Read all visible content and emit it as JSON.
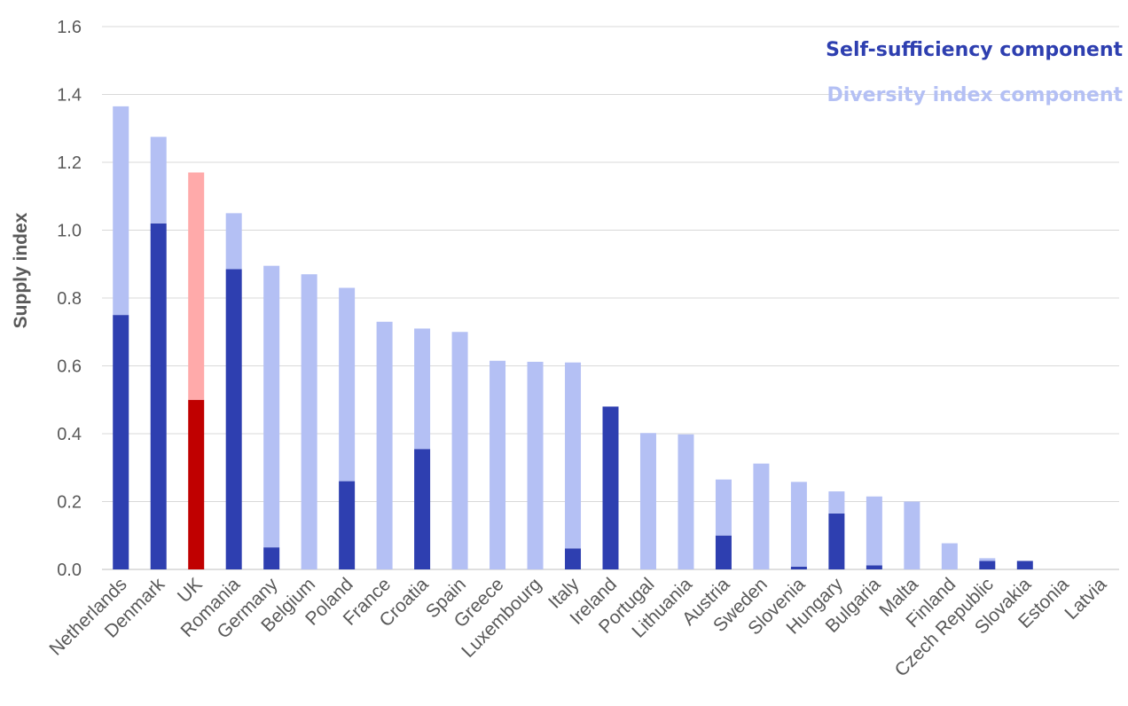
{
  "chart_data": {
    "type": "bar",
    "stacked": true,
    "ylabel": "Supply index",
    "xlabel": "",
    "ylim": [
      0,
      1.6
    ],
    "yticks": [
      "0.0",
      "0.2",
      "0.4",
      "0.6",
      "0.8",
      "1.0",
      "1.2",
      "1.4",
      "1.6"
    ],
    "grid": true,
    "legend_position": "top-right",
    "categories": [
      "Netherlands",
      "Denmark",
      "UK",
      "Romania",
      "Germany",
      "Belgium",
      "Poland",
      "France",
      "Croatia",
      "Spain",
      "Greece",
      "Luxembourg",
      "Italy",
      "Ireland",
      "Portugal",
      "Lithuania",
      "Austria",
      "Sweden",
      "Slovenia",
      "Hungary",
      "Bulgaria",
      "Malta",
      "Finland",
      "Czech Republic",
      "Slovakia",
      "Estonia",
      "Latvia"
    ],
    "highlight_category": "UK",
    "series": [
      {
        "name": "Self-sufficiency component",
        "color": "#2e3fb0",
        "highlight_color": "#c00000",
        "values": [
          0.75,
          1.02,
          0.5,
          0.885,
          0.065,
          0.0,
          0.26,
          0.0,
          0.355,
          0.0,
          0.0,
          0.0,
          0.062,
          0.48,
          0.0,
          0.0,
          0.1,
          0.0,
          0.008,
          0.165,
          0.012,
          0.0,
          0.0,
          0.025,
          0.025,
          0.0,
          0.0
        ]
      },
      {
        "name": "Diversity index component",
        "color": "#b4c0f4",
        "highlight_color": "#ffaaaa",
        "values": [
          0.615,
          0.255,
          0.67,
          0.165,
          0.83,
          0.87,
          0.57,
          0.73,
          0.355,
          0.7,
          0.615,
          0.612,
          0.548,
          0.0,
          0.402,
          0.398,
          0.165,
          0.312,
          0.25,
          0.065,
          0.203,
          0.2,
          0.077,
          0.008,
          0.0,
          0.0,
          0.0
        ]
      }
    ]
  }
}
